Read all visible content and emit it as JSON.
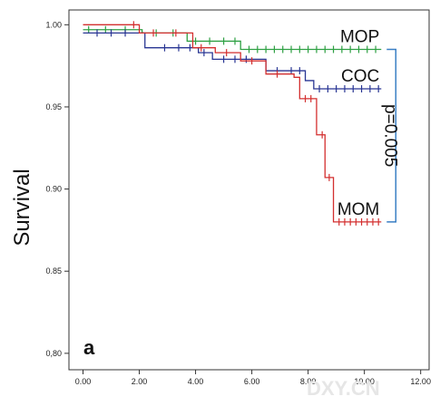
{
  "chart_data": {
    "type": "line",
    "subtype": "kaplan-meier step survival curves",
    "panel_label": "a",
    "title": "",
    "xlabel": "",
    "ylabel": "Survival",
    "xlim": [
      -0.5,
      12.3
    ],
    "ylim": [
      0.79,
      1.009
    ],
    "x_ticks": [
      0,
      2,
      4,
      6,
      8,
      10,
      12
    ],
    "x_tick_labels": [
      "0.00",
      "2.00",
      "4.00",
      "6.00",
      "8.00",
      "10.00",
      "12.00"
    ],
    "y_ticks": [
      0.8,
      0.85,
      0.9,
      0.95,
      1.0
    ],
    "y_tick_labels": [
      "0,80",
      "0.85",
      "0.90",
      "0.95",
      "1.00"
    ],
    "grid": false,
    "legend": "none",
    "series": [
      {
        "name": "MOP",
        "color": "#2ea043",
        "steps": [
          [
            0,
            0.997
          ],
          [
            2.1,
            0.995
          ],
          [
            3.7,
            0.99
          ],
          [
            5.6,
            0.985
          ],
          [
            10.6,
            0.985
          ]
        ],
        "censored": [
          [
            0.2,
            0.997
          ],
          [
            0.8,
            0.997
          ],
          [
            1.5,
            0.997
          ],
          [
            2.6,
            0.995
          ],
          [
            3.2,
            0.995
          ],
          [
            4.0,
            0.99
          ],
          [
            4.5,
            0.99
          ],
          [
            5.0,
            0.99
          ],
          [
            5.4,
            0.99
          ],
          [
            5.9,
            0.985
          ],
          [
            6.2,
            0.985
          ],
          [
            6.5,
            0.985
          ],
          [
            6.8,
            0.985
          ],
          [
            7.1,
            0.985
          ],
          [
            7.4,
            0.985
          ],
          [
            7.7,
            0.985
          ],
          [
            8.0,
            0.985
          ],
          [
            8.3,
            0.985
          ],
          [
            8.6,
            0.985
          ],
          [
            8.9,
            0.985
          ],
          [
            9.2,
            0.985
          ],
          [
            9.5,
            0.985
          ],
          [
            9.8,
            0.985
          ],
          [
            10.1,
            0.985
          ],
          [
            10.4,
            0.985
          ]
        ]
      },
      {
        "name": "COC",
        "color": "#283593",
        "steps": [
          [
            0,
            0.995
          ],
          [
            2.2,
            0.986
          ],
          [
            4.1,
            0.983
          ],
          [
            4.6,
            0.979
          ],
          [
            6.5,
            0.972
          ],
          [
            7.9,
            0.966
          ],
          [
            8.2,
            0.961
          ],
          [
            10.6,
            0.961
          ]
        ],
        "censored": [
          [
            0.5,
            0.995
          ],
          [
            1.0,
            0.995
          ],
          [
            1.5,
            0.995
          ],
          [
            2.9,
            0.986
          ],
          [
            3.4,
            0.986
          ],
          [
            3.8,
            0.986
          ],
          [
            4.3,
            0.983
          ],
          [
            5.0,
            0.979
          ],
          [
            5.4,
            0.979
          ],
          [
            5.8,
            0.979
          ],
          [
            6.9,
            0.972
          ],
          [
            7.4,
            0.972
          ],
          [
            7.7,
            0.972
          ],
          [
            8.4,
            0.961
          ],
          [
            8.7,
            0.961
          ],
          [
            9.0,
            0.961
          ],
          [
            9.3,
            0.961
          ],
          [
            9.6,
            0.961
          ],
          [
            9.9,
            0.961
          ],
          [
            10.2,
            0.961
          ],
          [
            10.5,
            0.961
          ]
        ]
      },
      {
        "name": "MOM",
        "color": "#d32f2f",
        "steps": [
          [
            0,
            1.0
          ],
          [
            2.0,
            0.995
          ],
          [
            3.9,
            0.986
          ],
          [
            4.7,
            0.983
          ],
          [
            5.6,
            0.978
          ],
          [
            6.5,
            0.97
          ],
          [
            7.5,
            0.968
          ],
          [
            7.7,
            0.955
          ],
          [
            8.3,
            0.933
          ],
          [
            8.6,
            0.907
          ],
          [
            8.9,
            0.88
          ],
          [
            10.6,
            0.88
          ]
        ],
        "censored": [
          [
            1.8,
            1.0
          ],
          [
            2.5,
            0.995
          ],
          [
            3.3,
            0.995
          ],
          [
            4.2,
            0.986
          ],
          [
            5.1,
            0.983
          ],
          [
            6.0,
            0.978
          ],
          [
            6.9,
            0.97
          ],
          [
            7.9,
            0.955
          ],
          [
            8.1,
            0.955
          ],
          [
            8.5,
            0.933
          ],
          [
            8.75,
            0.907
          ],
          [
            9.1,
            0.88
          ],
          [
            9.3,
            0.88
          ],
          [
            9.5,
            0.88
          ],
          [
            9.7,
            0.88
          ],
          [
            9.9,
            0.88
          ],
          [
            10.1,
            0.88
          ],
          [
            10.3,
            0.88
          ],
          [
            10.5,
            0.88
          ]
        ]
      }
    ],
    "annotations": {
      "p_value_label": "p=0.005",
      "bracket_color": "#3a7fc4",
      "bracket_between": [
        "MOP",
        "MOM"
      ]
    }
  },
  "watermark": {
    "text": "DXY.CN",
    "color": "#e6e6e6"
  }
}
